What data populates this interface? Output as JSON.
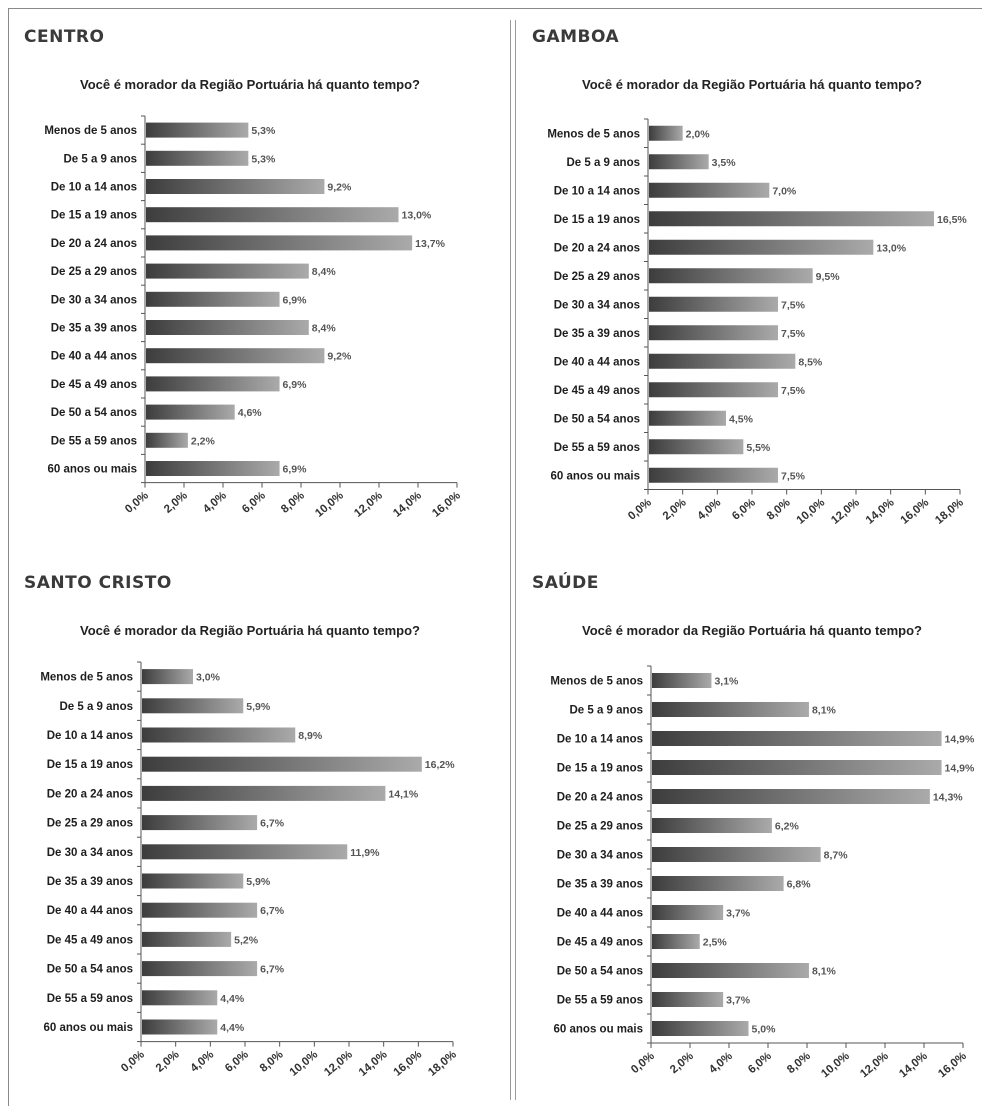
{
  "chart_data": [
    {
      "type": "bar",
      "panel": "CENTRO",
      "title": "Você é morador da Região Portuária há quanto tempo?",
      "categories": [
        "Menos de 5 anos",
        "De 5 a 9 anos",
        "De 10 a 14 anos",
        "De 15 a 19 anos",
        "De 20 a 24 anos",
        "De 25 a 29 anos",
        "De 30 a 34 anos",
        "De 35 a 39 anos",
        "De 40 a 44 anos",
        "De 45 a 49 anos",
        "De 50 a 54 anos",
        "De 55 a 59 anos",
        "60 anos ou mais"
      ],
      "values": [
        5.3,
        5.3,
        9.2,
        13.0,
        13.7,
        8.4,
        6.9,
        8.4,
        9.2,
        6.9,
        4.6,
        2.2,
        6.9
      ],
      "value_labels": [
        "5,3%",
        "5,3%",
        "9,2%",
        "13,0%",
        "13,7%",
        "8,4%",
        "6,9%",
        "8,4%",
        "9,2%",
        "6,9%",
        "4,6%",
        "2,2%",
        "6,9%"
      ],
      "xlim": [
        0,
        16
      ],
      "xticks": [
        "0,0%",
        "2,0%",
        "4,0%",
        "6,0%",
        "8,0%",
        "10,0%",
        "12,0%",
        "14,0%",
        "16,0%"
      ],
      "orientation": "horizontal",
      "grid": false
    },
    {
      "type": "bar",
      "panel": "GAMBOA",
      "title": "Você é morador da Região Portuária há quanto tempo?",
      "categories": [
        "Menos de 5 anos",
        "De 5 a 9 anos",
        "De 10 a 14 anos",
        "De 15 a 19 anos",
        "De 20 a 24 anos",
        "De 25 a 29 anos",
        "De 30 a 34 anos",
        "De 35 a 39 anos",
        "De 40 a 44 anos",
        "De 45 a 49 anos",
        "De 50 a 54 anos",
        "De 55 a 59 anos",
        "60 anos ou mais"
      ],
      "values": [
        2.0,
        3.5,
        7.0,
        16.5,
        13.0,
        9.5,
        7.5,
        7.5,
        8.5,
        7.5,
        4.5,
        5.5,
        7.5
      ],
      "value_labels": [
        "2,0%",
        "3,5%",
        "7,0%",
        "16,5%",
        "13,0%",
        "9,5%",
        "7,5%",
        "7,5%",
        "8,5%",
        "7,5%",
        "4,5%",
        "5,5%",
        "7,5%"
      ],
      "xlim": [
        0,
        18
      ],
      "xticks": [
        "0,0%",
        "2,0%",
        "4,0%",
        "6,0%",
        "8,0%",
        "10,0%",
        "12,0%",
        "14,0%",
        "16,0%",
        "18,0%"
      ],
      "orientation": "horizontal",
      "grid": false
    },
    {
      "type": "bar",
      "panel": "SANTO CRISTO",
      "title": "Você é morador da Região Portuária há quanto tempo?",
      "categories": [
        "Menos de 5 anos",
        "De 5 a 9 anos",
        "De 10 a 14 anos",
        "De 15 a 19 anos",
        "De 20 a 24 anos",
        "De 25 a 29 anos",
        "De 30 a 34 anos",
        "De 35 a 39 anos",
        "De 40 a 44 anos",
        "De 45 a 49 anos",
        "De 50 a 54 anos",
        "De 55 a 59 anos",
        "60 anos ou mais"
      ],
      "values": [
        3.0,
        5.9,
        8.9,
        16.2,
        14.1,
        6.7,
        11.9,
        5.9,
        6.7,
        5.2,
        6.7,
        4.4,
        4.4
      ],
      "value_labels": [
        "3,0%",
        "5,9%",
        "8,9%",
        "16,2%",
        "14,1%",
        "6,7%",
        "11,9%",
        "5,9%",
        "6,7%",
        "5,2%",
        "6,7%",
        "4,4%",
        "4,4%"
      ],
      "xlim": [
        0,
        18
      ],
      "xticks": [
        "0,0%",
        "2,0%",
        "4,0%",
        "6,0%",
        "8,0%",
        "10,0%",
        "12,0%",
        "14,0%",
        "16,0%",
        "18,0%"
      ],
      "orientation": "horizontal",
      "grid": false
    },
    {
      "type": "bar",
      "panel": "SAÚDE",
      "title": "Você é morador da Região Portuária há quanto tempo?",
      "categories": [
        "Menos de 5 anos",
        "De 5 a 9 anos",
        "De 10 a 14 anos",
        "De 15 a 19 anos",
        "De 20 a 24 anos",
        "De 25 a 29 anos",
        "De 30 a 34 anos",
        "De 35 a 39 anos",
        "De 40 a 44 anos",
        "De 45 a 49 anos",
        "De 50 a 54 anos",
        "De 55 a 59 anos",
        "60 anos ou mais"
      ],
      "values": [
        3.1,
        8.1,
        14.9,
        14.9,
        14.3,
        6.2,
        8.7,
        6.8,
        3.7,
        2.5,
        8.1,
        3.7,
        5.0
      ],
      "value_labels": [
        "3,1%",
        "8,1%",
        "14,9%",
        "14,9%",
        "14,3%",
        "6,2%",
        "8,7%",
        "6,8%",
        "3,7%",
        "2,5%",
        "8,1%",
        "3,7%",
        "5,0%"
      ],
      "xlim": [
        0,
        16
      ],
      "xticks": [
        "0,0%",
        "2,0%",
        "4,0%",
        "6,0%",
        "8,0%",
        "10,0%",
        "12,0%",
        "14,0%",
        "16,0%"
      ],
      "orientation": "horizontal",
      "grid": false
    }
  ],
  "colors": {
    "bar_dark": "#3d3d3d",
    "bar_light": "#aaaaaa"
  }
}
